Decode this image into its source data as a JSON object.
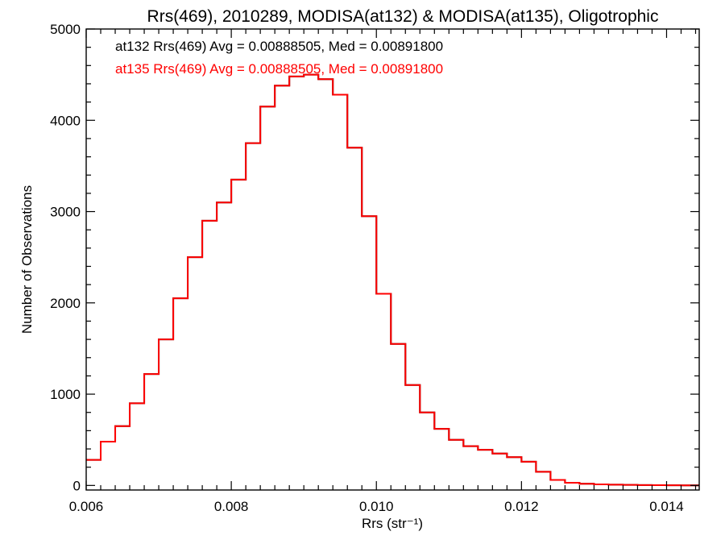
{
  "chart_data": {
    "type": "histogram-step",
    "title": "Rrs(469), 2010289, MODISA(at132) & MODISA(at135), Oligotrophic",
    "xlabel": "Rrs (str⁻¹)",
    "ylabel": "Number of Observations",
    "xlim": [
      0.006,
      0.01445
    ],
    "ylim": [
      -50,
      5000
    ],
    "xticks": [
      0.006,
      0.008,
      0.01,
      0.012,
      0.014
    ],
    "xtick_labels": [
      "0.006",
      "0.008",
      "0.010",
      "0.012",
      "0.014"
    ],
    "yticks": [
      0,
      1000,
      2000,
      3000,
      4000,
      5000
    ],
    "ytick_labels": [
      "0",
      "1000",
      "2000",
      "3000",
      "4000",
      "5000"
    ],
    "grid": false,
    "annotations": [
      {
        "text": "at132 Rrs(469) Avg = 0.00888505, Med = 0.00891800",
        "color": "#000000"
      },
      {
        "text": "at135 Rrs(469) Avg = 0.00888505, Med = 0.00891800",
        "color": "#ff0000"
      }
    ],
    "series": [
      {
        "name": "at132",
        "color": "#000000",
        "bins": [
          [
            0.006,
            280
          ],
          [
            0.0062,
            480
          ],
          [
            0.0064,
            650
          ],
          [
            0.0066,
            900
          ],
          [
            0.0068,
            1220
          ],
          [
            0.007,
            1600
          ],
          [
            0.0072,
            2050
          ],
          [
            0.0074,
            2500
          ],
          [
            0.0076,
            2900
          ],
          [
            0.0078,
            3100
          ],
          [
            0.008,
            3350
          ],
          [
            0.0082,
            3750
          ],
          [
            0.0084,
            4150
          ],
          [
            0.0086,
            4380
          ],
          [
            0.0088,
            4480
          ],
          [
            0.009,
            4500
          ],
          [
            0.0092,
            4450
          ],
          [
            0.0094,
            4280
          ],
          [
            0.0096,
            3700
          ],
          [
            0.0098,
            2950
          ],
          [
            0.01,
            2100
          ],
          [
            0.0102,
            1550
          ],
          [
            0.0104,
            1100
          ],
          [
            0.0106,
            800
          ],
          [
            0.0108,
            620
          ],
          [
            0.011,
            500
          ],
          [
            0.0112,
            430
          ],
          [
            0.0114,
            390
          ],
          [
            0.0116,
            350
          ],
          [
            0.0118,
            310
          ],
          [
            0.012,
            260
          ],
          [
            0.0122,
            150
          ],
          [
            0.0124,
            60
          ],
          [
            0.0126,
            30
          ],
          [
            0.0128,
            18
          ],
          [
            0.013,
            12
          ],
          [
            0.0132,
            8
          ],
          [
            0.0134,
            6
          ],
          [
            0.0136,
            4
          ],
          [
            0.0138,
            3
          ],
          [
            0.014,
            2
          ],
          [
            0.0142,
            1
          ],
          [
            0.01445,
            1
          ]
        ]
      },
      {
        "name": "at135",
        "color": "#ff0000",
        "bins": [
          [
            0.006,
            280
          ],
          [
            0.0062,
            480
          ],
          [
            0.0064,
            650
          ],
          [
            0.0066,
            900
          ],
          [
            0.0068,
            1220
          ],
          [
            0.007,
            1600
          ],
          [
            0.0072,
            2050
          ],
          [
            0.0074,
            2500
          ],
          [
            0.0076,
            2900
          ],
          [
            0.0078,
            3100
          ],
          [
            0.008,
            3350
          ],
          [
            0.0082,
            3750
          ],
          [
            0.0084,
            4150
          ],
          [
            0.0086,
            4380
          ],
          [
            0.0088,
            4480
          ],
          [
            0.009,
            4500
          ],
          [
            0.0092,
            4450
          ],
          [
            0.0094,
            4280
          ],
          [
            0.0096,
            3700
          ],
          [
            0.0098,
            2950
          ],
          [
            0.01,
            2100
          ],
          [
            0.0102,
            1550
          ],
          [
            0.0104,
            1100
          ],
          [
            0.0106,
            800
          ],
          [
            0.0108,
            620
          ],
          [
            0.011,
            500
          ],
          [
            0.0112,
            430
          ],
          [
            0.0114,
            390
          ],
          [
            0.0116,
            350
          ],
          [
            0.0118,
            310
          ],
          [
            0.012,
            260
          ],
          [
            0.0122,
            150
          ],
          [
            0.0124,
            60
          ],
          [
            0.0126,
            30
          ],
          [
            0.0128,
            18
          ],
          [
            0.013,
            12
          ],
          [
            0.0132,
            8
          ],
          [
            0.0134,
            6
          ],
          [
            0.0136,
            4
          ],
          [
            0.0138,
            3
          ],
          [
            0.014,
            2
          ],
          [
            0.0142,
            1
          ],
          [
            0.01445,
            1
          ]
        ]
      }
    ]
  }
}
